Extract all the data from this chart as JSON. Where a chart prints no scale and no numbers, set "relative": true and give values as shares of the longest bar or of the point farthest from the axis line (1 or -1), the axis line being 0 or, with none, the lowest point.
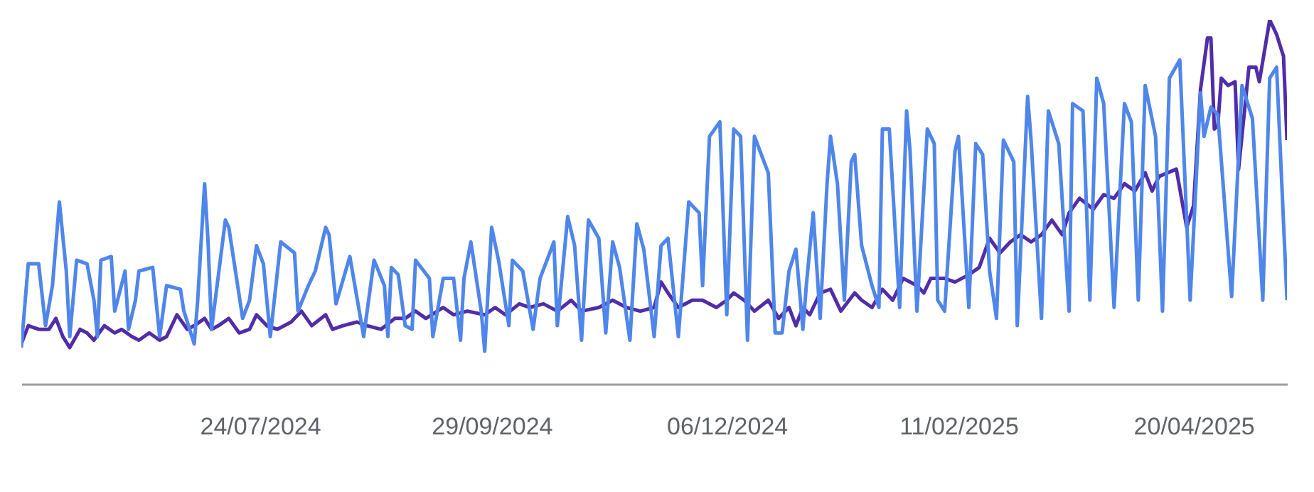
{
  "chart_data": {
    "type": "line",
    "relative": true,
    "legend": false,
    "marker": "none",
    "line_style": "solid",
    "xlim": [
      "2024-05-16",
      "2025-05-17"
    ],
    "xticks": [
      {
        "value": "2024-07-24",
        "label": "24/07/2024"
      },
      {
        "value": "2024-09-29",
        "label": "29/09/2024"
      },
      {
        "value": "2024-12-06",
        "label": "06/12/2024"
      },
      {
        "value": "2025-02-11",
        "label": "11/02/2025"
      },
      {
        "value": "2025-04-20",
        "label": "20/04/2025"
      }
    ],
    "series": [
      {
        "color": "#512da8",
        "x": [
          "2024-05-16",
          "2024-05-18",
          "2024-05-21",
          "2024-05-24",
          "2024-05-26",
          "2024-05-28",
          "2024-05-30",
          "2024-06-02",
          "2024-06-04",
          "2024-06-06",
          "2024-06-09",
          "2024-06-12",
          "2024-06-14",
          "2024-06-17",
          "2024-06-19",
          "2024-06-22",
          "2024-06-25",
          "2024-06-27",
          "2024-06-30",
          "2024-07-03",
          "2024-07-05",
          "2024-07-08",
          "2024-07-10",
          "2024-07-12",
          "2024-07-15",
          "2024-07-18",
          "2024-07-21",
          "2024-07-23",
          "2024-07-26",
          "2024-07-29",
          "2024-08-02",
          "2024-08-05",
          "2024-08-08",
          "2024-08-12",
          "2024-08-14",
          "2024-08-17",
          "2024-08-21",
          "2024-08-24",
          "2024-08-28",
          "2024-09-01",
          "2024-09-04",
          "2024-09-07",
          "2024-09-10",
          "2024-09-15",
          "2024-09-18",
          "2024-09-22",
          "2024-09-27",
          "2024-09-30",
          "2024-10-03",
          "2024-10-07",
          "2024-10-10",
          "2024-10-14",
          "2024-10-18",
          "2024-10-22",
          "2024-10-25",
          "2024-10-30",
          "2024-11-03",
          "2024-11-07",
          "2024-11-11",
          "2024-11-15",
          "2024-11-17",
          "2024-11-19",
          "2024-11-22",
          "2024-11-26",
          "2024-11-29",
          "2024-12-03",
          "2024-12-06",
          "2024-12-08",
          "2024-12-11",
          "2024-12-14",
          "2024-12-18",
          "2024-12-21",
          "2024-12-24",
          "2024-12-26",
          "2024-12-28",
          "2024-12-30",
          "2025-01-02",
          "2025-01-05",
          "2025-01-08",
          "2025-01-12",
          "2025-01-14",
          "2025-01-17",
          "2025-01-20",
          "2025-01-23",
          "2025-01-26",
          "2025-01-30",
          "2025-02-01",
          "2025-02-03",
          "2025-02-07",
          "2025-02-10",
          "2025-02-14",
          "2025-02-17",
          "2025-02-20",
          "2025-02-23",
          "2025-02-26",
          "2025-03-01",
          "2025-03-04",
          "2025-03-07",
          "2025-03-10",
          "2025-03-13",
          "2025-03-15",
          "2025-03-18",
          "2025-03-22",
          "2025-03-25",
          "2025-03-28",
          "2025-03-31",
          "2025-04-03",
          "2025-04-06",
          "2025-04-08",
          "2025-04-10",
          "2025-04-15",
          "2025-04-18",
          "2025-04-20",
          "2025-04-22",
          "2025-04-24",
          "2025-04-25",
          "2025-04-26",
          "2025-04-27",
          "2025-04-28",
          "2025-04-30",
          "2025-05-02",
          "2025-05-03",
          "2025-05-06",
          "2025-05-08",
          "2025-05-09",
          "2025-05-12",
          "2025-05-14",
          "2025-05-16",
          "2025-05-17"
        ],
        "values": [
          0.11,
          0.16,
          0.15,
          0.15,
          0.18,
          0.13,
          0.1,
          0.15,
          0.14,
          0.12,
          0.16,
          0.14,
          0.15,
          0.13,
          0.12,
          0.14,
          0.12,
          0.13,
          0.19,
          0.15,
          0.16,
          0.18,
          0.15,
          0.16,
          0.18,
          0.14,
          0.15,
          0.19,
          0.16,
          0.15,
          0.17,
          0.2,
          0.16,
          0.19,
          0.15,
          0.16,
          0.17,
          0.16,
          0.15,
          0.18,
          0.18,
          0.2,
          0.18,
          0.21,
          0.19,
          0.2,
          0.19,
          0.21,
          0.19,
          0.22,
          0.21,
          0.22,
          0.2,
          0.23,
          0.2,
          0.21,
          0.23,
          0.21,
          0.2,
          0.21,
          0.28,
          0.25,
          0.21,
          0.23,
          0.23,
          0.21,
          0.23,
          0.25,
          0.23,
          0.2,
          0.23,
          0.18,
          0.21,
          0.16,
          0.21,
          0.19,
          0.25,
          0.26,
          0.2,
          0.25,
          0.23,
          0.21,
          0.26,
          0.23,
          0.29,
          0.27,
          0.25,
          0.29,
          0.29,
          0.28,
          0.3,
          0.32,
          0.4,
          0.36,
          0.39,
          0.41,
          0.39,
          0.41,
          0.45,
          0.41,
          0.47,
          0.51,
          0.48,
          0.52,
          0.51,
          0.55,
          0.53,
          0.58,
          0.53,
          0.57,
          0.59,
          0.43,
          0.49,
          0.81,
          0.95,
          0.95,
          0.7,
          0.71,
          0.84,
          0.82,
          0.83,
          0.59,
          0.87,
          0.87,
          0.83,
          1.0,
          0.96,
          0.9,
          0.67
        ]
      },
      {
        "color": "#4f86ea",
        "x": [
          "2024-05-16",
          "2024-05-18",
          "2024-05-21",
          "2024-05-23",
          "2024-05-25",
          "2024-05-27",
          "2024-05-29",
          "2024-05-30",
          "2024-06-01",
          "2024-06-04",
          "2024-06-06",
          "2024-06-07",
          "2024-06-08",
          "2024-06-11",
          "2024-06-12",
          "2024-06-15",
          "2024-06-16",
          "2024-06-18",
          "2024-06-19",
          "2024-06-23",
          "2024-06-25",
          "2024-06-27",
          "2024-07-01",
          "2024-07-02",
          "2024-07-05",
          "2024-07-06",
          "2024-07-08",
          "2024-07-09",
          "2024-07-10",
          "2024-07-14",
          "2024-07-15",
          "2024-07-19",
          "2024-07-21",
          "2024-07-23",
          "2024-07-25",
          "2024-07-27",
          "2024-07-30",
          "2024-08-03",
          "2024-08-04",
          "2024-08-07",
          "2024-08-09",
          "2024-08-12",
          "2024-08-13",
          "2024-08-15",
          "2024-08-19",
          "2024-08-21",
          "2024-08-23",
          "2024-08-26",
          "2024-08-29",
          "2024-08-30",
          "2024-08-31",
          "2024-09-02",
          "2024-09-04",
          "2024-09-06",
          "2024-09-07",
          "2024-09-11",
          "2024-09-12",
          "2024-09-15",
          "2024-09-18",
          "2024-09-20",
          "2024-09-21",
          "2024-09-23",
          "2024-09-26",
          "2024-09-27",
          "2024-09-29",
          "2024-10-01",
          "2024-10-04",
          "2024-10-05",
          "2024-10-08",
          "2024-10-11",
          "2024-10-13",
          "2024-10-17",
          "2024-10-18",
          "2024-10-21",
          "2024-10-23",
          "2024-10-25",
          "2024-10-27",
          "2024-10-30",
          "2024-11-01",
          "2024-11-03",
          "2024-11-05",
          "2024-11-08",
          "2024-11-10",
          "2024-11-12",
          "2024-11-15",
          "2024-11-17",
          "2024-11-19",
          "2024-11-22",
          "2024-11-25",
          "2024-11-28",
          "2024-11-29",
          "2024-12-01",
          "2024-12-04",
          "2024-12-06",
          "2024-12-08",
          "2024-12-10",
          "2024-12-12",
          "2024-12-14",
          "2024-12-18",
          "2024-12-20",
          "2024-12-22",
          "2024-12-24",
          "2024-12-26",
          "2024-12-28",
          "2024-12-29",
          "2024-12-31",
          "2025-01-02",
          "2025-01-04",
          "2025-01-05",
          "2025-01-07",
          "2025-01-09",
          "2025-01-11",
          "2025-01-12",
          "2025-01-14",
          "2025-01-17",
          "2025-01-19",
          "2025-01-20",
          "2025-01-22",
          "2025-01-25",
          "2025-01-27",
          "2025-01-28",
          "2025-01-30",
          "2025-02-02",
          "2025-02-04",
          "2025-02-05",
          "2025-02-07",
          "2025-02-10",
          "2025-02-11",
          "2025-02-14",
          "2025-02-16",
          "2025-02-18",
          "2025-02-20",
          "2025-02-22",
          "2025-02-24",
          "2025-02-27",
          "2025-02-28",
          "2025-03-03",
          "2025-03-04",
          "2025-03-07",
          "2025-03-09",
          "2025-03-12",
          "2025-03-15",
          "2025-03-16",
          "2025-03-19",
          "2025-03-21",
          "2025-03-23",
          "2025-03-25",
          "2025-03-28",
          "2025-03-31",
          "2025-04-02",
          "2025-04-04",
          "2025-04-06",
          "2025-04-09",
          "2025-04-11",
          "2025-04-13",
          "2025-04-16",
          "2025-04-19",
          "2025-04-22",
          "2025-04-23",
          "2025-04-25",
          "2025-04-27",
          "2025-05-01",
          "2025-05-04",
          "2025-05-07",
          "2025-05-10",
          "2025-05-12",
          "2025-05-14",
          "2025-05-17"
        ],
        "values": [
          0.1,
          0.33,
          0.33,
          0.16,
          0.27,
          0.5,
          0.31,
          0.13,
          0.34,
          0.33,
          0.23,
          0.13,
          0.34,
          0.35,
          0.2,
          0.31,
          0.15,
          0.23,
          0.31,
          0.32,
          0.13,
          0.27,
          0.26,
          0.2,
          0.11,
          0.23,
          0.55,
          0.39,
          0.15,
          0.45,
          0.43,
          0.18,
          0.23,
          0.38,
          0.33,
          0.13,
          0.39,
          0.36,
          0.2,
          0.27,
          0.31,
          0.43,
          0.41,
          0.22,
          0.35,
          0.24,
          0.13,
          0.34,
          0.27,
          0.13,
          0.32,
          0.3,
          0.16,
          0.15,
          0.34,
          0.29,
          0.13,
          0.29,
          0.29,
          0.12,
          0.29,
          0.39,
          0.2,
          0.09,
          0.43,
          0.34,
          0.16,
          0.34,
          0.31,
          0.15,
          0.29,
          0.39,
          0.16,
          0.46,
          0.38,
          0.12,
          0.45,
          0.4,
          0.14,
          0.39,
          0.32,
          0.12,
          0.44,
          0.37,
          0.13,
          0.38,
          0.4,
          0.13,
          0.5,
          0.47,
          0.27,
          0.68,
          0.72,
          0.19,
          0.7,
          0.68,
          0.12,
          0.68,
          0.58,
          0.14,
          0.14,
          0.31,
          0.37,
          0.15,
          0.27,
          0.47,
          0.18,
          0.55,
          0.68,
          0.55,
          0.23,
          0.61,
          0.63,
          0.38,
          0.27,
          0.21,
          0.7,
          0.7,
          0.21,
          0.75,
          0.64,
          0.2,
          0.7,
          0.66,
          0.23,
          0.2,
          0.64,
          0.68,
          0.21,
          0.66,
          0.63,
          0.31,
          0.18,
          0.67,
          0.61,
          0.16,
          0.79,
          0.67,
          0.18,
          0.75,
          0.66,
          0.2,
          0.77,
          0.75,
          0.23,
          0.84,
          0.77,
          0.21,
          0.77,
          0.72,
          0.23,
          0.82,
          0.68,
          0.2,
          0.84,
          0.89,
          0.23,
          0.8,
          0.68,
          0.76,
          0.74,
          0.24,
          0.82,
          0.73,
          0.23,
          0.84,
          0.87,
          0.23
        ]
      }
    ]
  }
}
